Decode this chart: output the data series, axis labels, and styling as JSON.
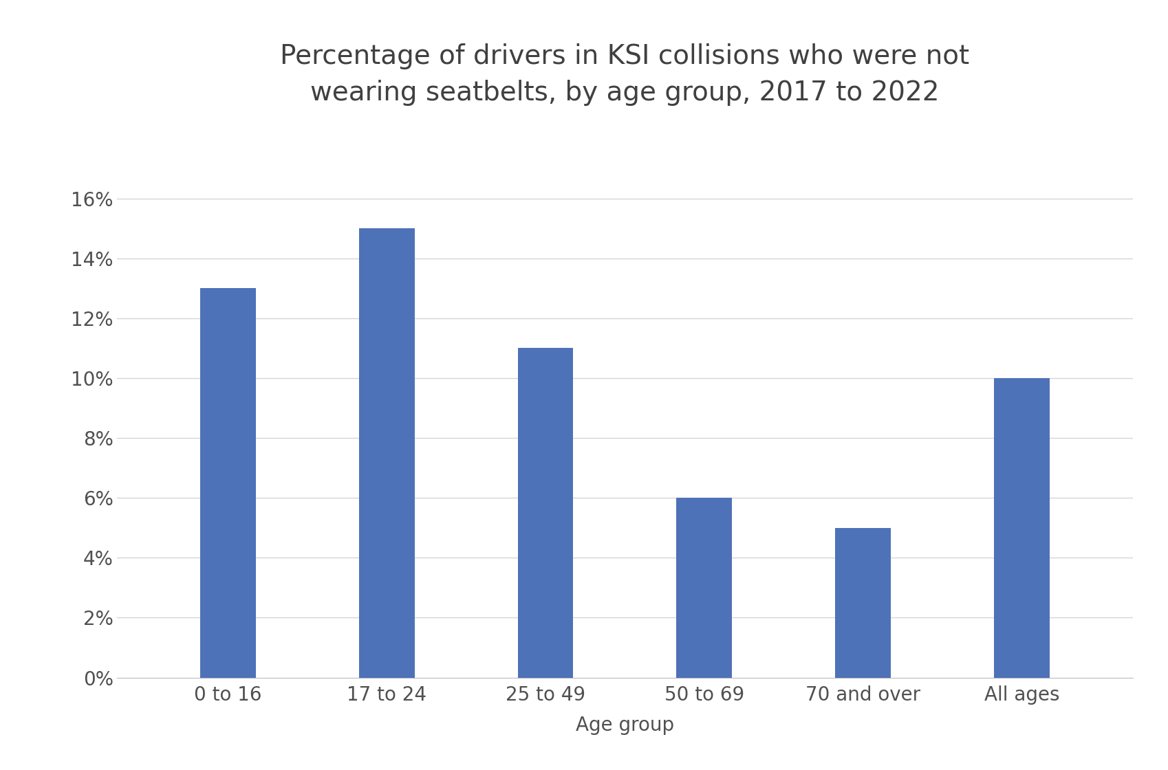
{
  "title": "Percentage of drivers in KSI collisions who were not\nwearing seatbelts, by age group, 2017 to 2022",
  "categories": [
    "0 to 16",
    "17 to 24",
    "25 to 49",
    "50 to 69",
    "70 and over",
    "All ages"
  ],
  "values": [
    0.13,
    0.15,
    0.11,
    0.06,
    0.05,
    0.1
  ],
  "bar_color": "#4e72b8",
  "xlabel": "Age group",
  "ylabel": "",
  "ylim": [
    0,
    0.18
  ],
  "yticks": [
    0,
    0.02,
    0.04,
    0.06,
    0.08,
    0.1,
    0.12,
    0.14,
    0.16
  ],
  "title_fontsize": 28,
  "axis_label_fontsize": 20,
  "tick_fontsize": 20,
  "background_color": "#ffffff",
  "grid_color": "#d5d5d5"
}
